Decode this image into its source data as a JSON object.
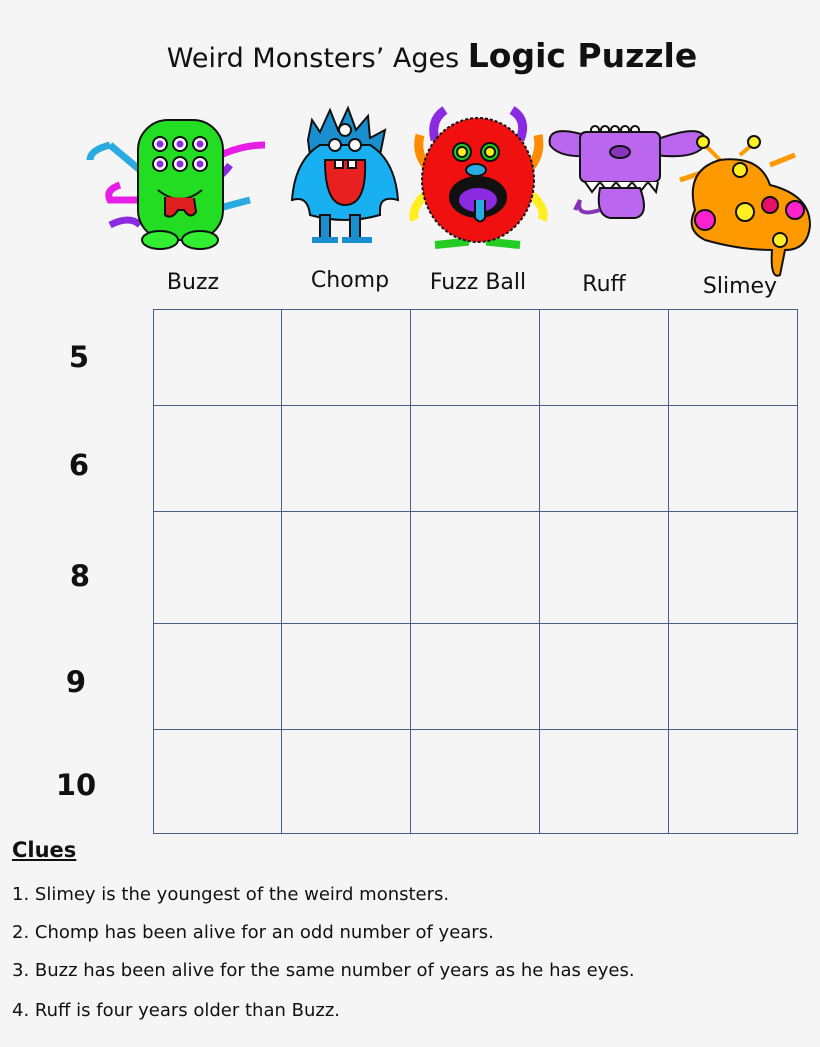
{
  "title": {
    "prefix": "Weird Monsters’ Ages",
    "bold": "Logic Puzzle"
  },
  "monsters": [
    "Buzz",
    "Chomp",
    "Fuzz Ball",
    "Ruff",
    "Slimey"
  ],
  "ages": [
    "5",
    "6",
    "8",
    "9",
    "10"
  ],
  "clues": {
    "heading": "Clues",
    "items": [
      "1. Slimey is the youngest of the weird monsters.",
      "2. Chomp has been alive for an odd number of years.",
      "3. Buzz has been alive for the same number of years as he has eyes.",
      "4. Ruff is four years older than Buzz."
    ]
  },
  "colors": {
    "grid_line": "#4c5f88",
    "background": "#f5f5f5"
  }
}
